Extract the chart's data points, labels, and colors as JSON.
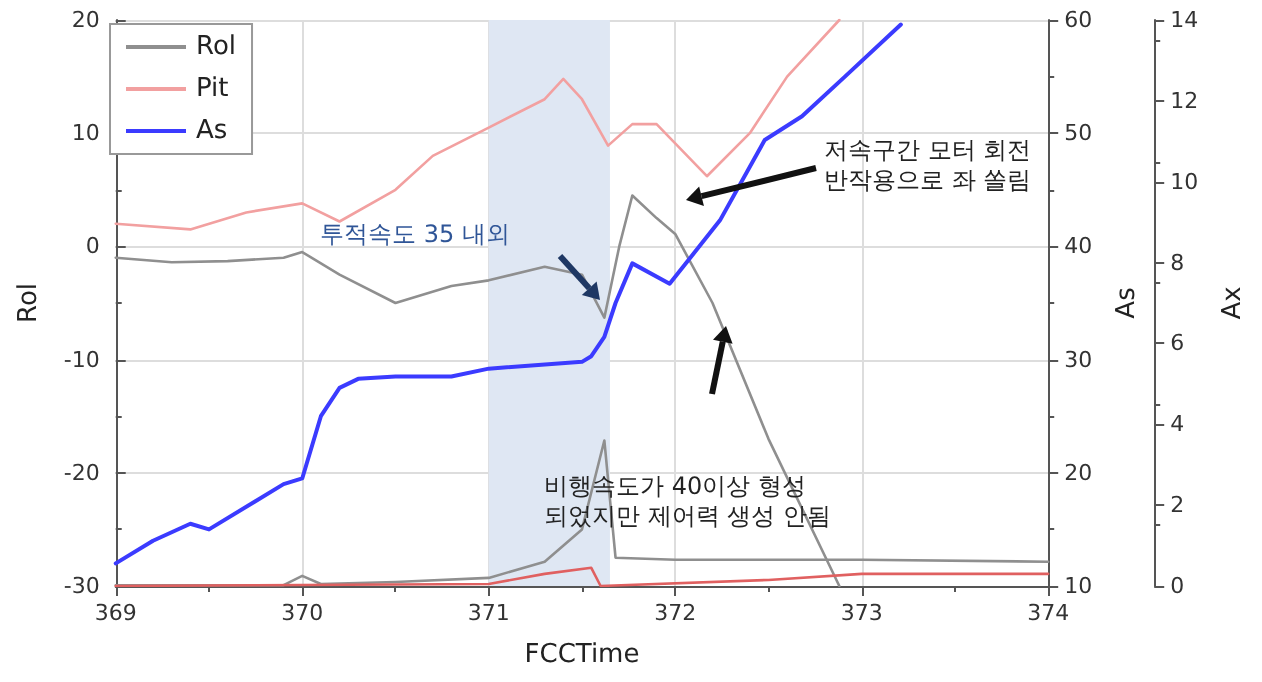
{
  "chart_data": {
    "type": "line",
    "xlabel": "FCCTime",
    "ylabel": "Rol",
    "y2label": "As",
    "y3label": "Ax",
    "xlim": [
      369,
      374
    ],
    "xticks": [
      369,
      370,
      371,
      372,
      373,
      374
    ],
    "ylim": [
      -30,
      20
    ],
    "yticks": [
      -30,
      -20,
      -10,
      0,
      10,
      20
    ],
    "y2lim": [
      10,
      60
    ],
    "y2ticks": [
      10,
      20,
      30,
      40,
      50,
      60
    ],
    "y3lim": [
      0,
      14
    ],
    "y3ticks": [
      0,
      2,
      4,
      6,
      8,
      10,
      12,
      14
    ],
    "grid": true,
    "legend": "top left",
    "marker": "none",
    "line_style": "solid",
    "bands": [
      {
        "axis": "x",
        "from": 371,
        "to": 371.65,
        "color": "#dfe7f3"
      }
    ],
    "annotations": [
      "저속구간 모터 회전\n반작용으로 좌 쏠림",
      "투적속도 35 내외",
      "비행속도가 40이상 형성\n되었지만 제어력 생성 안됨"
    ],
    "series": [
      {
        "name": "Rol",
        "color": "#8f8f8f",
        "x": [
          369,
          369.3,
          369.6,
          369.9,
          370.0,
          370.2,
          370.5,
          370.8,
          371.0,
          371.3,
          371.5,
          371.62,
          371.7,
          371.77,
          371.9,
          372.0,
          372.2,
          372.5,
          372.88
        ],
        "values": [
          -1,
          -1.4,
          -1.3,
          -1.0,
          -0.5,
          -2.5,
          -5,
          -3.5,
          -3,
          -1.8,
          -2.5,
          -6.3,
          0,
          4.5,
          2.5,
          1.1,
          -5,
          -17,
          -30
        ]
      },
      {
        "name": "Pit",
        "color": "#f2a0a0",
        "x": [
          369,
          369.4,
          369.7,
          370.0,
          370.2,
          370.5,
          370.7,
          371.0,
          371.3,
          371.4,
          371.5,
          371.64,
          371.77,
          371.9,
          372.17,
          372.4,
          372.6,
          372.88
        ],
        "values": [
          2,
          1.5,
          3,
          3.8,
          2.2,
          5,
          8,
          10.5,
          13,
          14.8,
          13,
          8.9,
          10.8,
          10.8,
          6.2,
          10,
          15,
          20
        ]
      },
      {
        "name": "As",
        "color": "#3b3bff",
        "axis": "y2",
        "x": [
          369,
          369.2,
          369.4,
          369.5,
          369.9,
          370.0,
          370.1,
          370.2,
          370.3,
          370.5,
          370.8,
          371.0,
          371.5,
          371.55,
          371.62,
          371.68,
          371.77,
          371.97,
          372.24,
          372.48,
          372.68,
          372.91,
          373.21
        ],
        "values": [
          12,
          14,
          15.5,
          15,
          19,
          19.5,
          25,
          27.5,
          28.3,
          28.5,
          28.5,
          29.2,
          29.8,
          30.3,
          32,
          35,
          38.5,
          36.7,
          42.3,
          49.4,
          51.5,
          55,
          59.6
        ]
      },
      {
        "color": "#8f8f8f",
        "axis": "y3",
        "x": [
          369,
          369.9,
          370.0,
          370.1,
          370.5,
          371.0,
          371.3,
          371.5,
          371.62,
          371.68,
          372.0,
          373.0,
          374.0
        ],
        "values": [
          0.02,
          0.02,
          0.25,
          0.05,
          0.1,
          0.2,
          0.6,
          1.4,
          3.6,
          0.7,
          0.65,
          0.65,
          0.6
        ]
      },
      {
        "color": "#e06060",
        "axis": "y3",
        "x": [
          369,
          371.0,
          371.3,
          371.55,
          371.6,
          372.5,
          373.0,
          374.0
        ],
        "values": [
          0,
          0.05,
          0.3,
          0.45,
          0.0,
          0.15,
          0.3,
          0.3
        ]
      }
    ]
  }
}
